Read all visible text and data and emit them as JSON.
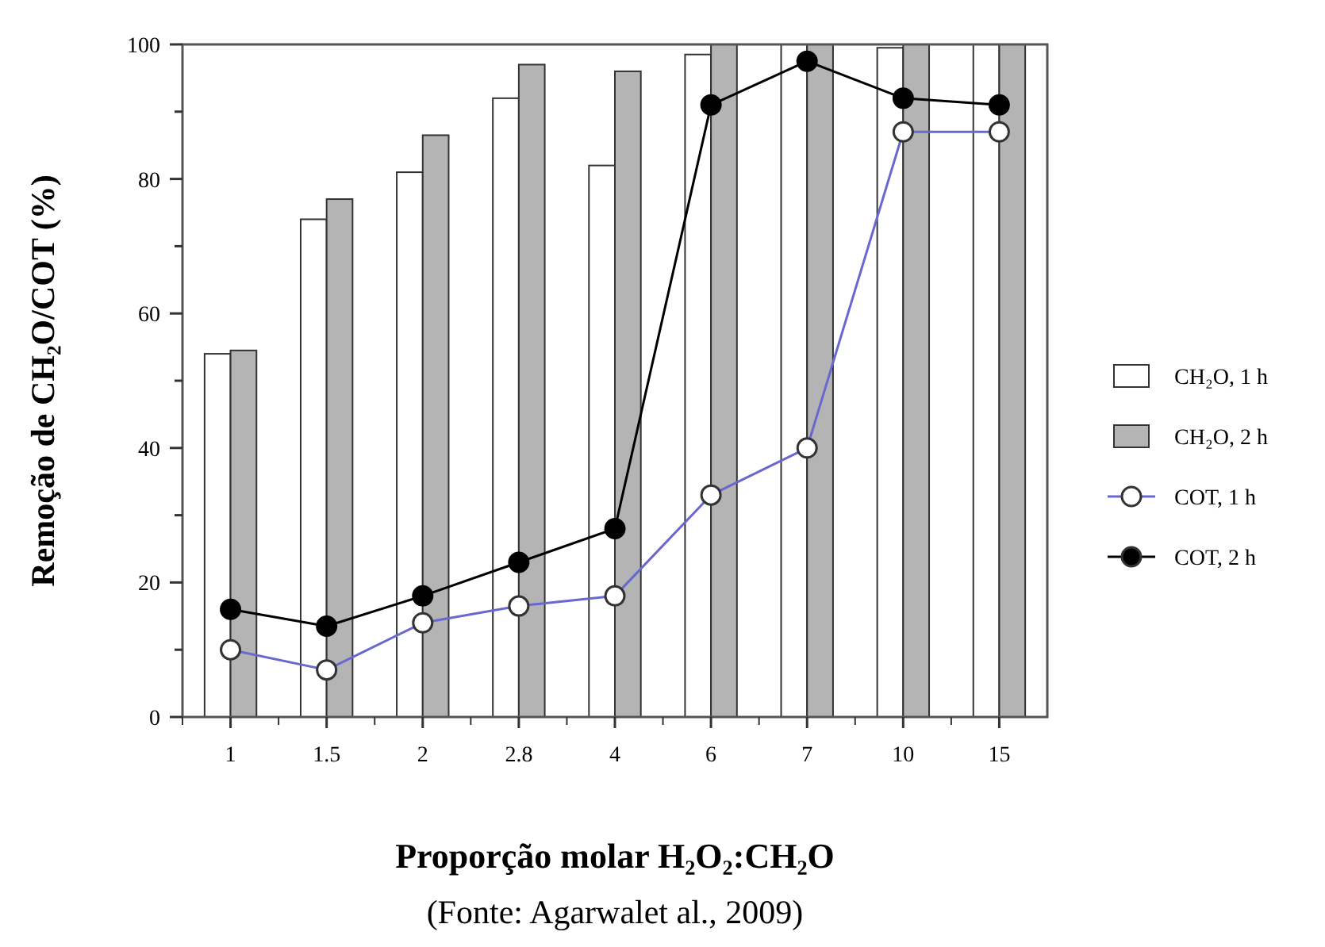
{
  "chart_data": {
    "type": "bar",
    "xlabel": "Proporção molar H₂O₂:CH₂O",
    "ylabel": "Remoção de CH₂O/COT (%)",
    "annotations": [
      "(Fonte: Agarwalet al., 2009)"
    ],
    "categories": [
      "1",
      "1.5",
      "2",
      "2.8",
      "4",
      "6",
      "7",
      "10",
      "15"
    ],
    "ylim": [
      0,
      100
    ],
    "yticks": [
      0,
      {
        "value": 10,
        "label": null
      },
      20,
      {
        "value": 30,
        "label": null
      },
      40,
      {
        "value": 50,
        "label": null
      },
      60,
      {
        "value": 70,
        "label": null
      },
      80,
      {
        "value": 90,
        "label": null
      },
      100
    ],
    "legend": "right",
    "grid": false,
    "series": [
      {
        "name": "CH₂O, 1 h",
        "color": "#ffffff",
        "values": [
          54,
          74,
          81,
          92,
          82,
          98.5,
          100,
          99.5,
          100
        ]
      },
      {
        "name": "CH₂O, 2 h",
        "color": "#b4b4b4",
        "values": [
          54.5,
          77,
          86.5,
          97,
          96,
          100,
          100,
          100,
          100
        ]
      },
      {
        "name": "COT, 1 h",
        "type": "line",
        "color": "#6868d0",
        "marker": "circle",
        "values": [
          10,
          7,
          14,
          16.5,
          18,
          33,
          40,
          87,
          87
        ]
      },
      {
        "name": "COT, 2 h",
        "type": "line",
        "color": "#000000",
        "marker": "circle",
        "values": [
          16,
          13.5,
          18,
          23,
          28,
          91,
          97.5,
          92,
          91
        ]
      }
    ]
  }
}
